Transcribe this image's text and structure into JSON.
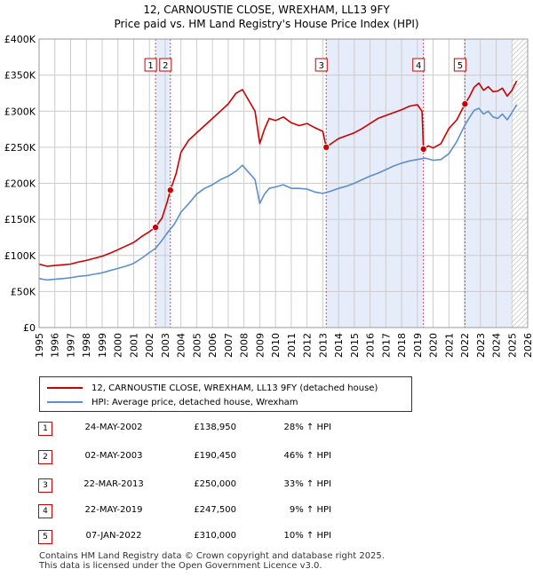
{
  "title": "12, CARNOUSTIE CLOSE, WREXHAM, LL13 9FY",
  "subtitle": "Price paid vs. HM Land Registry's House Price Index (HPI)",
  "colors": {
    "property": "#cc0000",
    "hpi": "#5b8fcf",
    "shade": "#e6ecf9",
    "grid": "#cccccc"
  },
  "chart_data": {
    "type": "line",
    "xlim": [
      1995,
      2026
    ],
    "ylim": [
      0,
      400000
    ],
    "y_ticks": [
      0,
      50000,
      100000,
      150000,
      200000,
      250000,
      300000,
      350000,
      400000
    ],
    "y_tick_labels": [
      "£0",
      "£50K",
      "£100K",
      "£150K",
      "£200K",
      "£250K",
      "£300K",
      "£350K",
      "£400K"
    ],
    "x_ticks": [
      1995,
      1996,
      1997,
      1998,
      1999,
      2000,
      2001,
      2002,
      2003,
      2004,
      2005,
      2006,
      2007,
      2008,
      2009,
      2010,
      2011,
      2012,
      2013,
      2014,
      2015,
      2016,
      2017,
      2018,
      2019,
      2020,
      2021,
      2022,
      2023,
      2024,
      2025,
      2026
    ],
    "grid": true,
    "series": [
      {
        "name": "12, CARNOUSTIE CLOSE, WREXHAM, LL13 9FY (detached house)",
        "x": [
          1995.0,
          1995.5,
          1996.0,
          1996.5,
          1997.0,
          1997.5,
          1998.0,
          1998.5,
          1999.0,
          1999.5,
          2000.0,
          2000.5,
          2001.0,
          2001.5,
          2002.0,
          2002.39,
          2002.8,
          2003.1,
          2003.33,
          2003.7,
          2004.0,
          2004.5,
          2005.0,
          2005.5,
          2006.0,
          2006.5,
          2007.0,
          2007.5,
          2007.9,
          2008.3,
          2008.7,
          2009.0,
          2009.3,
          2009.6,
          2010.0,
          2010.5,
          2011.0,
          2011.5,
          2012.0,
          2012.5,
          2013.0,
          2013.22,
          2013.6,
          2014.0,
          2014.5,
          2015.0,
          2015.5,
          2016.0,
          2016.5,
          2017.0,
          2017.5,
          2018.0,
          2018.5,
          2019.0,
          2019.3,
          2019.39,
          2019.7,
          2020.0,
          2020.5,
          2021.0,
          2021.5,
          2022.02,
          2022.3,
          2022.6,
          2022.9,
          2023.2,
          2023.5,
          2023.8,
          2024.1,
          2024.4,
          2024.7,
          2025.0,
          2025.3
        ],
        "y": [
          88000,
          85000,
          86000,
          87000,
          88000,
          91000,
          93000,
          96000,
          99000,
          103000,
          108000,
          113000,
          118000,
          126000,
          133000,
          138950,
          152000,
          172000,
          190450,
          214000,
          243000,
          260000,
          270000,
          280000,
          290000,
          300000,
          310000,
          325000,
          330000,
          315000,
          300000,
          255000,
          275000,
          290000,
          287000,
          292000,
          284000,
          280000,
          283000,
          277000,
          272000,
          250000,
          256000,
          262000,
          266000,
          270000,
          276000,
          283000,
          290000,
          294000,
          298000,
          302000,
          307000,
          309000,
          300000,
          247500,
          252000,
          249000,
          255000,
          276000,
          288000,
          310000,
          320000,
          333000,
          339000,
          329000,
          334000,
          327000,
          328000,
          332000,
          321000,
          329000,
          342000
        ]
      },
      {
        "name": "HPI: Average price, detached house, Wrexham",
        "x": [
          1995.0,
          1995.5,
          1996.0,
          1996.5,
          1997.0,
          1997.5,
          1998.0,
          1998.5,
          1999.0,
          1999.5,
          2000.0,
          2000.5,
          2001.0,
          2001.5,
          2002.0,
          2002.4,
          2002.8,
          2003.2,
          2003.6,
          2004.0,
          2004.5,
          2005.0,
          2005.5,
          2006.0,
          2006.5,
          2007.0,
          2007.5,
          2007.9,
          2008.3,
          2008.7,
          2009.0,
          2009.3,
          2009.6,
          2010.0,
          2010.5,
          2011.0,
          2011.5,
          2012.0,
          2012.5,
          2013.0,
          2013.5,
          2014.0,
          2014.5,
          2015.0,
          2015.5,
          2016.0,
          2016.5,
          2017.0,
          2017.5,
          2018.0,
          2018.5,
          2019.0,
          2019.5,
          2020.0,
          2020.5,
          2021.0,
          2021.5,
          2022.0,
          2022.3,
          2022.6,
          2022.9,
          2023.2,
          2023.5,
          2023.8,
          2024.1,
          2024.4,
          2024.7,
          2025.0,
          2025.3
        ],
        "y": [
          68000,
          66000,
          67000,
          68000,
          69000,
          71000,
          72000,
          74000,
          76000,
          79000,
          82000,
          85000,
          89000,
          96000,
          104000,
          110000,
          121000,
          133000,
          144000,
          160000,
          172000,
          185000,
          193000,
          198000,
          205000,
          210000,
          217000,
          225000,
          215000,
          205000,
          172000,
          185000,
          193000,
          195000,
          198000,
          193000,
          193000,
          192000,
          188000,
          186000,
          189000,
          193000,
          196000,
          200000,
          205000,
          210000,
          214000,
          219000,
          224000,
          228000,
          231000,
          233000,
          235000,
          232000,
          233000,
          241000,
          258000,
          280000,
          291000,
          301000,
          304000,
          296000,
          300000,
          292000,
          290000,
          296000,
          288000,
          298000,
          309000
        ]
      }
    ],
    "markers": [
      {
        "label": "1",
        "x": 2002.39,
        "y": 138950
      },
      {
        "label": "2",
        "x": 2003.33,
        "y": 190450
      },
      {
        "label": "3",
        "x": 2013.22,
        "y": 250000
      },
      {
        "label": "4",
        "x": 2019.39,
        "y": 247500
      },
      {
        "label": "5",
        "x": 2022.02,
        "y": 310000
      }
    ],
    "shaded_ranges": [
      [
        2002.39,
        2003.33
      ],
      [
        2013.22,
        2019.39
      ],
      [
        2022.02,
        2024.95
      ]
    ],
    "hatched_from": 2024.95
  },
  "legend": {
    "property": "12, CARNOUSTIE CLOSE, WREXHAM, LL13 9FY (detached house)",
    "hpi": "HPI: Average price, detached house, Wrexham"
  },
  "transactions": [
    {
      "num": "1",
      "date": "24-MAY-2002",
      "price": "£138,950",
      "hpi": "28% ↑ HPI"
    },
    {
      "num": "2",
      "date": "02-MAY-2003",
      "price": "£190,450",
      "hpi": "46% ↑ HPI"
    },
    {
      "num": "3",
      "date": "22-MAR-2013",
      "price": "£250,000",
      "hpi": "33% ↑ HPI"
    },
    {
      "num": "4",
      "date": "22-MAY-2019",
      "price": "£247,500",
      "hpi": "9% ↑ HPI"
    },
    {
      "num": "5",
      "date": "07-JAN-2022",
      "price": "£310,000",
      "hpi": "10% ↑ HPI"
    }
  ],
  "footer": {
    "line1": "Contains HM Land Registry data © Crown copyright and database right 2025.",
    "line2": "This data is licensed under the Open Government Licence v3.0."
  }
}
